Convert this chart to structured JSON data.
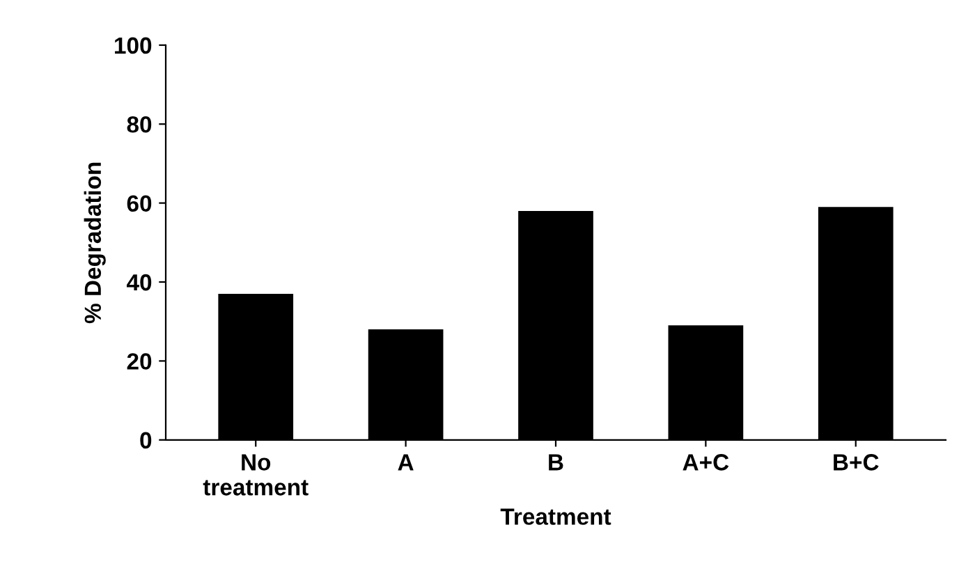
{
  "chart_data": {
    "type": "bar",
    "xlabel": "Treatment",
    "ylabel": "% Degradation",
    "categories": [
      "No\ntreatment",
      "A",
      "B",
      "A+C",
      "B+C"
    ],
    "values": [
      37,
      28,
      58,
      29,
      59
    ],
    "color": "#000000",
    "ylim": [
      0,
      100
    ],
    "yticks": [
      0,
      20,
      40,
      60,
      80,
      100
    ],
    "grid": false
  }
}
